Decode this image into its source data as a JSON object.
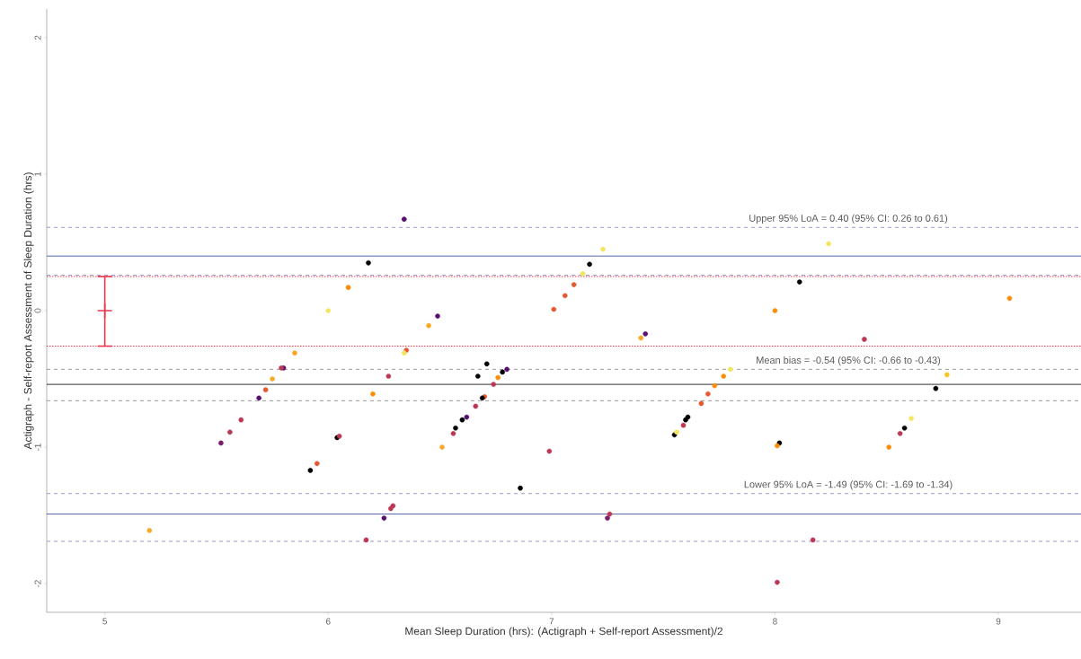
{
  "chart_data": {
    "type": "scatter",
    "xlabel": "Mean Sleep Duration (hrs): (Actigraph + Self-report Assessment)/2",
    "ylabel": "Actigraph - Self-report Assessment of Sleep Duration (hrs)",
    "xlim": [
      4.74,
      9.37
    ],
    "ylim": [
      -2.21,
      2.21
    ],
    "xticks": [
      5,
      6,
      7,
      8,
      9
    ],
    "yticks": [
      -2,
      -1,
      0,
      1,
      2
    ],
    "grid": false,
    "marker": "circle",
    "series": [
      {
        "x": [
          6.34,
          6.18,
          6.09,
          6.0,
          5.85,
          5.8,
          5.79,
          5.75,
          5.72,
          5.69,
          5.61,
          5.56,
          5.52,
          6.04,
          6.05,
          5.92,
          5.95,
          5.2,
          6.25,
          6.29,
          6.28,
          6.17,
          6.27,
          6.2,
          6.35,
          6.34,
          6.49,
          6.45,
          6.51,
          6.67,
          6.71,
          6.8,
          6.78,
          6.76,
          6.74,
          6.7,
          6.69,
          6.66,
          6.62,
          6.6,
          6.57,
          6.56,
          6.99,
          6.86,
          7.26,
          7.25,
          7.01,
          7.06,
          7.1,
          7.14,
          7.17,
          7.23,
          7.42,
          7.4,
          7.55,
          7.56,
          7.59,
          7.6,
          7.61,
          7.67,
          7.7,
          7.73,
          7.77,
          7.8,
          8.24,
          8.11,
          8.0,
          9.05,
          8.4,
          8.77,
          8.72,
          8.61,
          8.58,
          8.56,
          8.51,
          8.02,
          8.01,
          8.17,
          8.01
        ],
        "values": [
          0.67,
          0.35,
          0.17,
          0.0,
          -0.31,
          -0.42,
          -0.42,
          -0.5,
          -0.58,
          -0.64,
          -0.8,
          -0.89,
          -0.97,
          -0.93,
          -0.92,
          -1.17,
          -1.12,
          -1.61,
          -1.52,
          -1.43,
          -1.45,
          -1.68,
          -0.48,
          -0.61,
          -0.29,
          -0.31,
          -0.04,
          -0.11,
          -1.0,
          -0.48,
          -0.39,
          -0.43,
          -0.45,
          -0.49,
          -0.54,
          -0.63,
          -0.64,
          -0.7,
          -0.78,
          -0.8,
          -0.86,
          -0.9,
          -1.03,
          -1.3,
          -1.49,
          -1.52,
          0.01,
          0.11,
          0.19,
          0.27,
          0.34,
          0.45,
          -0.17,
          -0.2,
          -0.91,
          -0.89,
          -0.84,
          -0.8,
          -0.78,
          -0.68,
          -0.61,
          -0.55,
          -0.48,
          -0.43,
          0.49,
          0.21,
          0.0,
          0.09,
          -0.21,
          -0.47,
          -0.57,
          -0.79,
          -0.86,
          -0.9,
          -1.0,
          -0.97,
          -0.99,
          -1.68,
          -1.99
        ],
        "colors": [
          "#56106e",
          "#000004",
          "#f98e09",
          "#f3e55d",
          "#f9a825",
          "#56106e",
          "#bb3754",
          "#f9a825",
          "#e35932",
          "#56106e",
          "#bb3754",
          "#bb3754",
          "#7a1d6d",
          "#000004",
          "#bb3754",
          "#000004",
          "#e35932",
          "#f9a825",
          "#56106e",
          "#bb3754",
          "#bb3754",
          "#bb3754",
          "#bb3754",
          "#f98e09",
          "#e35932",
          "#f3e55d",
          "#56106e",
          "#f9a825",
          "#f9a825",
          "#000004",
          "#000004",
          "#56106e",
          "#000004",
          "#f98e09",
          "#bb3754",
          "#e35932",
          "#000004",
          "#bb3754",
          "#56106e",
          "#000004",
          "#000004",
          "#bb3754",
          "#bb3754",
          "#000004",
          "#bb3754",
          "#7a1d6d",
          "#e35932",
          "#e35932",
          "#e35932",
          "#f3e55d",
          "#000004",
          "#f3e55d",
          "#56106e",
          "#f9a825",
          "#000004",
          "#f3e55d",
          "#bb3754",
          "#000004",
          "#000004",
          "#e35932",
          "#e35932",
          "#f98e09",
          "#f98e09",
          "#f3e55d",
          "#f3e55d",
          "#000004",
          "#f98e09",
          "#f98e09",
          "#bb3754",
          "#f9c825",
          "#000004",
          "#f3e55d",
          "#000004",
          "#bb3754",
          "#f98e09",
          "#000004",
          "#f98e09",
          "#bb3754",
          "#bb3754"
        ]
      },
      {
        "x": [
          5
        ],
        "values": [
          0
        ],
        "errors": [
          [
            -0.26,
            0.25
          ]
        ],
        "color": "#e8384f",
        "marker": "cross"
      }
    ],
    "ref_lines": [
      {
        "axis": "y",
        "value": 0.61,
        "color": "#9a9acc",
        "line_style": "dashed",
        "label": "Upper 95% LoA = 0.40 (95% CI: 0.26 to 0.61)"
      },
      {
        "axis": "y",
        "value": 0.4,
        "color": "#5566aa",
        "line_style": "solid"
      },
      {
        "axis": "y",
        "value": 0.26,
        "color": "#9a9acc",
        "line_style": "dashed"
      },
      {
        "axis": "y",
        "value": 0.25,
        "color": "#e8384f",
        "line_style": "dotted"
      },
      {
        "axis": "y",
        "value": -0.26,
        "color": "#e8384f",
        "line_style": "dotted"
      },
      {
        "axis": "y",
        "value": -0.43,
        "color": "#999999",
        "line_style": "dashed",
        "label": "Mean bias = -0.54 (95% CI: -0.66 to -0.43)"
      },
      {
        "axis": "y",
        "value": -0.54,
        "color": "#333333",
        "line_style": "solid"
      },
      {
        "axis": "y",
        "value": -0.66,
        "color": "#999999",
        "line_style": "dashed"
      },
      {
        "axis": "y",
        "value": -1.34,
        "color": "#9a9acc",
        "line_style": "dashed",
        "label": "Lower 95% LoA = -1.49 (95% CI: -1.69 to -1.34)"
      },
      {
        "axis": "y",
        "value": -1.49,
        "color": "#5566aa",
        "line_style": "solid"
      },
      {
        "axis": "y",
        "value": -1.69,
        "color": "#9a9acc",
        "line_style": "dashed"
      }
    ]
  }
}
